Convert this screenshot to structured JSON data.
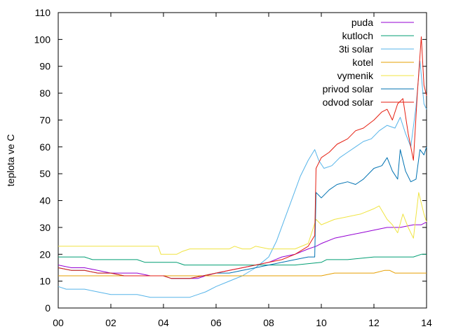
{
  "chart_data": {
    "type": "line",
    "title": "",
    "xlabel": "",
    "ylabel": "teplota ve C",
    "xlim": [
      0,
      14
    ],
    "ylim": [
      0,
      110
    ],
    "xticks": [
      0,
      2,
      4,
      6,
      8,
      10,
      12,
      14
    ],
    "xtick_labels": [
      "00",
      "02",
      "04",
      "06",
      "08",
      "10",
      "12",
      "14"
    ],
    "yticks": [
      0,
      10,
      20,
      30,
      40,
      50,
      60,
      70,
      80,
      90,
      100,
      110
    ],
    "ytick_labels": [
      "0",
      "10",
      "20",
      "30",
      "40",
      "50",
      "60",
      "70",
      "80",
      "90",
      "100",
      "110"
    ],
    "grid": false,
    "legend_position": "top-right",
    "series": [
      {
        "name": "puda",
        "color": "#9400d3",
        "x": [
          0,
          0.5,
          1.0,
          1.5,
          2.0,
          2.5,
          3.0,
          3.5,
          4.0,
          4.3,
          4.6,
          5.0,
          5.3,
          5.6,
          6.0,
          6.5,
          7.0,
          7.5,
          8.0,
          8.5,
          9.0,
          9.5,
          9.8,
          10.0,
          10.5,
          11.0,
          11.5,
          12.0,
          12.5,
          13.0,
          13.5,
          13.8,
          14.0
        ],
        "y": [
          16,
          15,
          15,
          14,
          13,
          13,
          13,
          12,
          12,
          11,
          11,
          11,
          11,
          12,
          13,
          14,
          15,
          16,
          17,
          19,
          20,
          22,
          23,
          24,
          26,
          27,
          28,
          29,
          30,
          30,
          31,
          31,
          32
        ]
      },
      {
        "name": "kutloch",
        "color": "#009e73",
        "x": [
          0,
          1.0,
          1.3,
          3.0,
          3.3,
          4.5,
          4.8,
          8.0,
          9.0,
          10.0,
          10.2,
          11.0,
          12.0,
          13.5,
          13.8,
          14.0
        ],
        "y": [
          19,
          19,
          18,
          18,
          17,
          17,
          16,
          16,
          16,
          17,
          18,
          18,
          19,
          19,
          20,
          20
        ]
      },
      {
        "name": "3ti solar",
        "color": "#56b4e9",
        "x": [
          0,
          0.3,
          1.0,
          1.5,
          2.0,
          2.5,
          3.0,
          3.5,
          4.0,
          4.5,
          5.0,
          5.3,
          5.6,
          6.0,
          6.5,
          7.0,
          7.5,
          8.0,
          8.3,
          8.6,
          8.9,
          9.2,
          9.5,
          9.75,
          9.9,
          10.1,
          10.4,
          10.7,
          11.0,
          11.3,
          11.6,
          11.9,
          12.2,
          12.5,
          12.8,
          13.0,
          13.2,
          13.4,
          13.6,
          13.75,
          13.9,
          14.0
        ],
        "y": [
          8,
          7,
          7,
          6,
          5,
          5,
          5,
          4,
          4,
          4,
          4,
          5,
          6,
          8,
          10,
          12,
          15,
          19,
          25,
          33,
          41,
          49,
          55,
          59,
          55,
          52,
          53,
          56,
          58,
          60,
          62,
          63,
          66,
          68,
          67,
          71,
          65,
          60,
          75,
          92,
          76,
          74
        ]
      },
      {
        "name": "kotel",
        "color": "#e69f00",
        "x": [
          0,
          10.0,
          10.5,
          12.0,
          12.4,
          12.6,
          12.8,
          14.0
        ],
        "y": [
          12,
          12,
          13,
          13,
          14,
          14,
          13,
          13
        ]
      },
      {
        "name": "vymenik",
        "color": "#f0e442",
        "x": [
          0,
          3.8,
          3.9,
          4.5,
          4.7,
          5.0,
          6.0,
          6.5,
          6.7,
          7.0,
          7.3,
          7.5,
          8.0,
          8.5,
          9.0,
          9.5,
          9.8,
          10.0,
          10.5,
          11.0,
          11.5,
          12.0,
          12.2,
          12.5,
          12.7,
          12.9,
          13.1,
          13.3,
          13.5,
          13.7,
          13.9,
          14.0
        ],
        "y": [
          23,
          23,
          20,
          20,
          21,
          22,
          22,
          22,
          23,
          22,
          22,
          23,
          22,
          22,
          22,
          24,
          33,
          31,
          33,
          34,
          35,
          37,
          38,
          33,
          31,
          28,
          35,
          30,
          26,
          43,
          35,
          32
        ]
      },
      {
        "name": "privod solar",
        "color": "#0072b2",
        "x": [
          0,
          0.5,
          1.0,
          1.5,
          2.0,
          2.5,
          3.0,
          3.5,
          4.0,
          4.3,
          4.6,
          5.0,
          5.5,
          6.0,
          6.5,
          7.0,
          7.5,
          8.0,
          8.5,
          9.0,
          9.5,
          9.75,
          9.8,
          10.0,
          10.3,
          10.6,
          11.0,
          11.3,
          11.6,
          12.0,
          12.3,
          12.5,
          12.7,
          12.9,
          13.0,
          13.2,
          13.4,
          13.6,
          13.75,
          13.9,
          14.0
        ],
        "y": [
          15,
          14,
          14,
          13,
          13,
          12,
          12,
          12,
          12,
          11,
          11,
          11,
          12,
          13,
          13,
          14,
          15,
          16,
          17,
          18,
          19,
          19,
          43,
          41,
          44,
          46,
          47,
          46,
          48,
          52,
          53,
          56,
          51,
          48,
          59,
          51,
          47,
          48,
          59,
          57,
          60
        ]
      },
      {
        "name": "odvod solar",
        "color": "#e51e10",
        "x": [
          0,
          0.5,
          1.0,
          1.5,
          2.0,
          2.5,
          3.0,
          3.5,
          4.0,
          4.3,
          4.6,
          5.0,
          5.5,
          6.0,
          6.5,
          7.0,
          7.5,
          8.0,
          8.5,
          9.0,
          9.5,
          9.75,
          9.8,
          10.0,
          10.3,
          10.6,
          11.0,
          11.3,
          11.6,
          12.0,
          12.3,
          12.5,
          12.7,
          12.9,
          13.1,
          13.3,
          13.5,
          13.65,
          13.8,
          13.9,
          14.0
        ],
        "y": [
          15,
          14,
          14,
          13,
          13,
          12,
          12,
          12,
          12,
          11,
          11,
          11,
          12,
          13,
          14,
          15,
          16,
          17,
          18,
          20,
          23,
          27,
          52,
          56,
          58,
          61,
          63,
          66,
          67,
          70,
          73,
          74,
          70,
          76,
          78,
          65,
          55,
          80,
          101,
          83,
          79
        ]
      }
    ]
  }
}
